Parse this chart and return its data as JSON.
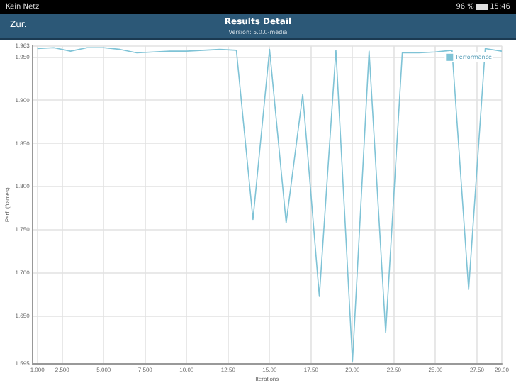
{
  "chart_data": {
    "type": "line",
    "title": "Results Detail",
    "subtitle": "Version: 5.0.0-media",
    "xlabel": "Iterations",
    "ylabel": "Perf. (frames)",
    "annotations": [
      "Kein Netz",
      "96 %",
      "15:46",
      "Zur."
    ],
    "x": [
      1,
      2,
      3,
      4,
      5,
      6,
      7,
      8,
      9,
      10,
      11,
      12,
      13,
      14,
      15,
      16,
      17,
      18,
      19,
      20,
      21,
      22,
      23,
      24,
      25,
      26,
      27,
      28,
      29
    ],
    "series": [
      {
        "name": "Performance",
        "color": "#7fc3d6",
        "values": [
          1.96,
          1.961,
          1.957,
          1.961,
          1.961,
          1.959,
          1.955,
          1.956,
          1.957,
          1.957,
          1.958,
          1.959,
          1.958,
          1.762,
          1.959,
          1.758,
          1.907,
          1.673,
          1.958,
          1.598,
          1.957,
          1.631,
          1.955,
          1.955,
          1.956,
          1.958,
          1.681,
          1.96,
          1.957
        ]
      }
    ],
    "xlim": [
      0.7,
      29
    ],
    "xticks": [
      {
        "value": 1,
        "label": "1.000"
      },
      {
        "value": 2.5,
        "label": "2.500"
      },
      {
        "value": 5,
        "label": "5.000"
      },
      {
        "value": 7.5,
        "label": "7.500"
      },
      {
        "value": 10,
        "label": "10.00"
      },
      {
        "value": 12.5,
        "label": "12.50"
      },
      {
        "value": 15,
        "label": "15.00"
      },
      {
        "value": 17.5,
        "label": "17.50"
      },
      {
        "value": 20,
        "label": "20.00"
      },
      {
        "value": 22.5,
        "label": "22.50"
      },
      {
        "value": 25,
        "label": "25.00"
      },
      {
        "value": 27.5,
        "label": "27.50"
      },
      {
        "value": 29,
        "label": "29.00"
      }
    ],
    "ylim": [
      1.595,
      1.963
    ],
    "yticks": [
      {
        "value": 1.595,
        "label": "1.595"
      },
      {
        "value": 1.65,
        "label": "1.650"
      },
      {
        "value": 1.7,
        "label": "1.700"
      },
      {
        "value": 1.75,
        "label": "1.750"
      },
      {
        "value": 1.8,
        "label": "1.800"
      },
      {
        "value": 1.85,
        "label": "1.850"
      },
      {
        "value": 1.9,
        "label": "1.900"
      },
      {
        "value": 1.95,
        "label": "1.950"
      },
      {
        "value": 1.963,
        "label": "1.963"
      }
    ],
    "grid": true,
    "legend": "top right",
    "marker": "none",
    "line_style": "solid"
  }
}
